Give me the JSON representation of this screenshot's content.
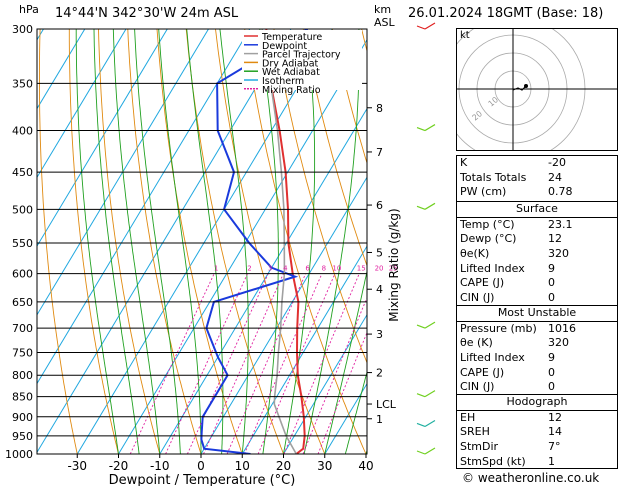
{
  "header": {
    "units_left": "hPa",
    "location": "14°44'N  342°30'W  24m  ASL",
    "units_km": "km",
    "units_asl": "ASL",
    "datetime": "26.01.2024  18GMT  (Base: 18)"
  },
  "chart_data": {
    "type": "line",
    "title": "14°44'N  342°30'W  24m  ASL",
    "xlabel": "Dewpoint / Temperature (°C)",
    "ylabel": "hPa",
    "y2label": "Mixing Ratio (g/kg)",
    "xlim": [
      -35,
      40
    ],
    "ylim": [
      1000,
      300
    ],
    "pressure_levels": [
      300,
      350,
      400,
      450,
      500,
      550,
      600,
      650,
      700,
      750,
      800,
      850,
      900,
      950,
      1000
    ],
    "x_ticks": [
      -30,
      -20,
      -10,
      0,
      10,
      20,
      30,
      40
    ],
    "km_ticks": [
      {
        "label": "8",
        "p": 375
      },
      {
        "label": "7",
        "p": 425
      },
      {
        "label": "6",
        "p": 494
      },
      {
        "label": "5",
        "p": 565
      },
      {
        "label": "4",
        "p": 627
      },
      {
        "label": "3",
        "p": 712
      },
      {
        "label": "2",
        "p": 794
      },
      {
        "label": "LCL",
        "p": 868
      },
      {
        "label": "1",
        "p": 905
      }
    ],
    "mixing_ratio_labels": [
      "1",
      "2",
      "3",
      "4",
      "6",
      "8",
      "10",
      "15",
      "20",
      "25"
    ],
    "legend": [
      "Temperature",
      "Dewpoint",
      "Parcel Trajectory",
      "Dry Adiabat",
      "Wet Adiabat",
      "Isotherm",
      "Mixing Ratio"
    ],
    "legend_position": "top-left",
    "series": [
      {
        "name": "Temperature",
        "color": "#e03030",
        "points": [
          [
            1000,
            23.1
          ],
          [
            985,
            24
          ],
          [
            950,
            22.5
          ],
          [
            900,
            19.5
          ],
          [
            850,
            16
          ],
          [
            800,
            12
          ],
          [
            750,
            8.5
          ],
          [
            700,
            5
          ],
          [
            650,
            1.5
          ],
          [
            600,
            -4
          ],
          [
            550,
            -9.5
          ],
          [
            500,
            -14.5
          ],
          [
            450,
            -20.5
          ],
          [
            400,
            -28
          ],
          [
            350,
            -37
          ],
          [
            300,
            -46
          ]
        ]
      },
      {
        "name": "Dewpoint",
        "color": "#1a3adc",
        "points": [
          [
            1000,
            12
          ],
          [
            985,
            0
          ],
          [
            960,
            -2
          ],
          [
            940,
            -3
          ],
          [
            900,
            -5
          ],
          [
            850,
            -5
          ],
          [
            800,
            -5
          ],
          [
            760,
            -10
          ],
          [
            700,
            -17
          ],
          [
            650,
            -19
          ],
          [
            605,
            -3
          ],
          [
            590,
            -10
          ],
          [
            550,
            -19
          ],
          [
            500,
            -30
          ],
          [
            450,
            -33
          ],
          [
            400,
            -43
          ],
          [
            350,
            -50
          ],
          [
            300,
            -36
          ]
        ]
      },
      {
        "name": "Parcel Trajectory",
        "color": "#a0a0a0",
        "points": [
          [
            1000,
            23.1
          ],
          [
            950,
            18
          ],
          [
            900,
            13.5
          ],
          [
            868,
            10.5
          ],
          [
            850,
            9.5
          ],
          [
            800,
            7
          ],
          [
            750,
            4
          ],
          [
            700,
            1
          ],
          [
            650,
            -2.5
          ],
          [
            600,
            -6
          ],
          [
            550,
            -10.5
          ],
          [
            500,
            -15.5
          ],
          [
            450,
            -21.5
          ],
          [
            400,
            -28.5
          ],
          [
            350,
            -37
          ],
          [
            300,
            -47
          ]
        ]
      }
    ]
  },
  "indices": {
    "rows": [
      {
        "label": "K",
        "value": "-20"
      },
      {
        "label": "Totals Totals",
        "value": "24"
      },
      {
        "label": "PW (cm)",
        "value": "0.78"
      }
    ]
  },
  "surface": {
    "title": "Surface",
    "rows": [
      {
        "label": "Temp (°C)",
        "value": "23.1"
      },
      {
        "label": "Dewp (°C)",
        "value": "12"
      },
      {
        "label": "θe(K)",
        "value": "320"
      },
      {
        "label": "Lifted Index",
        "value": "9"
      },
      {
        "label": "CAPE (J)",
        "value": "0"
      },
      {
        "label": "CIN (J)",
        "value": "0"
      }
    ]
  },
  "most_unstable": {
    "title": "Most Unstable",
    "rows": [
      {
        "label": "Pressure (mb)",
        "value": "1016"
      },
      {
        "label": "θe (K)",
        "value": "320"
      },
      {
        "label": "Lifted Index",
        "value": "9"
      },
      {
        "label": "CAPE (J)",
        "value": "0"
      },
      {
        "label": "CIN (J)",
        "value": "0"
      }
    ]
  },
  "hodograph": {
    "title": "Hodograph",
    "label": "kt",
    "ring_labels": [
      "10",
      "20"
    ],
    "rows": [
      {
        "label": "EH",
        "value": "12"
      },
      {
        "label": "SREH",
        "value": "14"
      },
      {
        "label": "StmDir",
        "value": "7°"
      },
      {
        "label": "StmSpd (kt)",
        "value": "1"
      }
    ]
  },
  "footer": {
    "copyright": "© weatheronline.co.uk"
  },
  "colors": {
    "temperature": "#e03030",
    "dewpoint": "#1a3adc",
    "parcel": "#a0a0a0",
    "dry_adiabat": "#e08a10",
    "wet_adiabat": "#20a020",
    "isotherm": "#20a8e0",
    "mixing_ratio": "#e020a0",
    "wind_barbs": "#70d020"
  }
}
